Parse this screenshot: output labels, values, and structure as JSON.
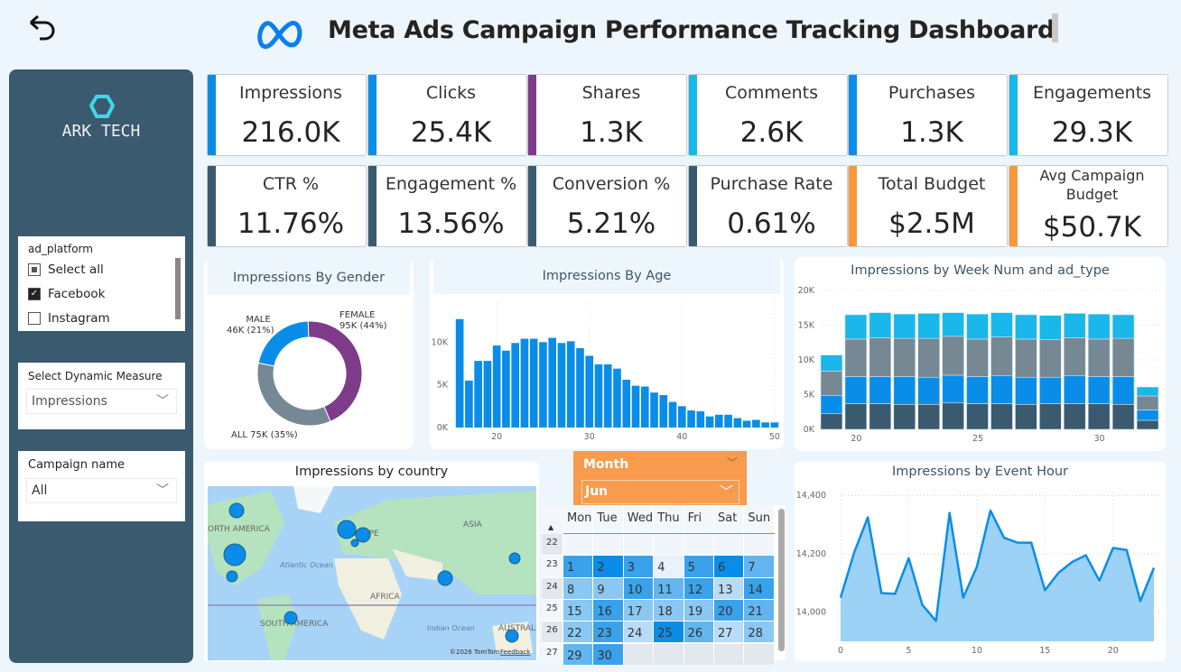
{
  "header": {
    "title": "Meta Ads Campaign Performance Tracking Dashboard",
    "back_icon": "undo-arrow-icon",
    "logo_icon": "meta-logo-icon"
  },
  "sidebar": {
    "brand": "ARK TECH",
    "ad_platform": {
      "title": "ad_platform",
      "options": [
        {
          "label": "Select all",
          "state": "partial"
        },
        {
          "label": "Facebook",
          "state": "checked"
        },
        {
          "label": "Instagram",
          "state": "unchecked"
        }
      ]
    },
    "dynamic_measure": {
      "title": "Select Dynamic Measure",
      "value": "Impressions"
    },
    "campaign": {
      "title": "Campaign name",
      "value": "All"
    }
  },
  "colors": {
    "blue": "#0a8de8",
    "cyan": "#1ab7ea",
    "purple": "#7e3b8a",
    "dark": "#3a5a70",
    "orange": "#f59a3c",
    "gray": "#768894"
  },
  "kpis": [
    {
      "label": "Impressions",
      "value": "216.0K",
      "color": "#0a8de8"
    },
    {
      "label": "Clicks",
      "value": "25.4K",
      "color": "#0a8de8"
    },
    {
      "label": "Shares",
      "value": "1.3K",
      "color": "#7e3b8a"
    },
    {
      "label": "Comments",
      "value": "2.6K",
      "color": "#1ab7ea"
    },
    {
      "label": "Purchases",
      "value": "1.3K",
      "color": "#0a8de8"
    },
    {
      "label": "Engagements",
      "value": "29.3K",
      "color": "#1ab7ea"
    },
    {
      "label": "CTR %",
      "value": "11.76%",
      "color": "#3a5a70"
    },
    {
      "label": "Engagement %",
      "value": "13.56%",
      "color": "#3a5a70"
    },
    {
      "label": "Conversion %",
      "value": "5.21%",
      "color": "#3a5a70"
    },
    {
      "label": "Purchase Rate",
      "value": "0.61%",
      "color": "#3a5a70"
    },
    {
      "label": "Total Budget",
      "value": "$2.5M",
      "color": "#f59a3c"
    },
    {
      "label": "Avg Campaign Budget",
      "value": "$50.7K",
      "color": "#f59a3c"
    }
  ],
  "chart_data": [
    {
      "id": "gender",
      "type": "pie",
      "title": "Impressions By Gender",
      "donut": true,
      "slices": [
        {
          "name": "FEMALE",
          "value": 95,
          "label": "95K (44%)",
          "color": "#7e3b8a"
        },
        {
          "name": "ALL",
          "value": 75,
          "label": "75K (35%)",
          "color": "#768894"
        },
        {
          "name": "MALE",
          "value": 46,
          "label": "46K (21%)",
          "color": "#0a8de8"
        }
      ]
    },
    {
      "id": "age",
      "type": "bar",
      "title": "Impressions By Age",
      "x_start": 16,
      "values": [
        12.7,
        5.5,
        7.8,
        7.8,
        9.6,
        9.0,
        9.9,
        10.4,
        10.4,
        10.0,
        10.5,
        9.9,
        10.1,
        9.3,
        8.4,
        7.4,
        7.4,
        6.9,
        5.6,
        4.9,
        4.8,
        4.1,
        3.8,
        3.0,
        2.5,
        2.0,
        1.9,
        1.3,
        1.5,
        1.5,
        1.1,
        0.8,
        0.9,
        0.6,
        0.6
      ],
      "unit": "K",
      "ylim": [
        0,
        14
      ],
      "yticks": [
        "0K",
        "5K",
        "10K"
      ],
      "xticks": [
        20,
        30,
        40,
        50
      ],
      "color": "#0a8de8"
    },
    {
      "id": "week",
      "type": "bar",
      "stacked": true,
      "title": "Impressions by Week Num and ad_type",
      "categories": [
        19,
        20,
        21,
        22,
        23,
        24,
        25,
        26,
        27,
        28,
        29,
        30,
        31,
        32
      ],
      "series": [
        {
          "color": "#3a5a70",
          "values": [
            2.3,
            3.7,
            3.7,
            3.6,
            3.6,
            3.8,
            3.7,
            3.7,
            3.6,
            3.7,
            3.7,
            3.7,
            3.6,
            1.3
          ]
        },
        {
          "color": "#0a8de8",
          "values": [
            2.6,
            3.9,
            3.9,
            4.0,
            3.9,
            4.0,
            3.9,
            4.0,
            3.9,
            3.8,
            4.0,
            3.9,
            4.0,
            1.5
          ]
        },
        {
          "color": "#768894",
          "values": [
            3.5,
            5.4,
            5.6,
            5.5,
            5.6,
            5.6,
            5.4,
            5.6,
            5.5,
            5.4,
            5.5,
            5.4,
            5.5,
            2.0
          ]
        },
        {
          "color": "#1ab7ea",
          "values": [
            2.3,
            3.5,
            3.6,
            3.5,
            3.6,
            3.4,
            3.6,
            3.5,
            3.5,
            3.5,
            3.5,
            3.6,
            3.4,
            1.3
          ]
        }
      ],
      "unit": "K",
      "ylim": [
        0,
        20
      ],
      "yticks": [
        "0K",
        "5K",
        "10K",
        "15K",
        "20K"
      ],
      "xticks": [
        20,
        25,
        30
      ]
    },
    {
      "id": "hour",
      "type": "area",
      "title": "Impressions by Event Hour",
      "x": [
        0,
        1,
        2,
        3,
        4,
        5,
        6,
        7,
        8,
        9,
        10,
        11,
        12,
        13,
        14,
        15,
        16,
        17,
        18,
        19,
        20,
        21,
        22,
        23
      ],
      "values": [
        14050,
        14205,
        14325,
        14065,
        14063,
        14185,
        14025,
        13970,
        14340,
        14050,
        14155,
        14348,
        14255,
        14238,
        14238,
        14075,
        14135,
        14172,
        14195,
        14108,
        14220,
        14213,
        14038,
        14152
      ],
      "ylim": [
        13900,
        14410
      ],
      "yticks": [
        "14,000",
        "14,200",
        "14,400"
      ],
      "xticks": [
        0,
        5,
        10,
        15,
        20
      ],
      "color": "#0a8de8"
    }
  ],
  "map": {
    "title": "Impressions by country",
    "labels": [
      "ORTH AMERICA",
      "EUROPE",
      "ASIA",
      "AFRICA",
      "SOUTH AMERICA",
      "AUSTRALIA",
      "Atlantic Ocean",
      "Indian Ocean"
    ],
    "credit": "©2026 TomTom",
    "feedback": "Feedback"
  },
  "month_slicer": {
    "title": "Month",
    "value": "Jun"
  },
  "calendar": {
    "weekdays": [
      "Mon",
      "Tue",
      "Wed",
      "Thu",
      "Fri",
      "Sat",
      "Sun"
    ],
    "weeks": [
      22,
      23,
      24,
      25,
      26,
      27
    ],
    "days": [
      {
        "d": 1,
        "level": 4
      },
      {
        "d": 2,
        "level": 5
      },
      {
        "d": 3,
        "level": 4
      },
      {
        "d": 4,
        "level": 0
      },
      {
        "d": 5,
        "level": 4
      },
      {
        "d": 6,
        "level": 5
      },
      {
        "d": 7,
        "level": 3
      },
      {
        "d": 8,
        "level": 2
      },
      {
        "d": 9,
        "level": 2
      },
      {
        "d": 10,
        "level": 4
      },
      {
        "d": 11,
        "level": 3
      },
      {
        "d": 12,
        "level": 4
      },
      {
        "d": 13,
        "level": 1
      },
      {
        "d": 14,
        "level": 4
      },
      {
        "d": 15,
        "level": 2
      },
      {
        "d": 16,
        "level": 4
      },
      {
        "d": 17,
        "level": 2
      },
      {
        "d": 18,
        "level": 2
      },
      {
        "d": 19,
        "level": 2
      },
      {
        "d": 20,
        "level": 4
      },
      {
        "d": 21,
        "level": 3
      },
      {
        "d": 22,
        "level": 2
      },
      {
        "d": 23,
        "level": 4
      },
      {
        "d": 24,
        "level": 1
      },
      {
        "d": 25,
        "level": 5
      },
      {
        "d": 26,
        "level": 3
      },
      {
        "d": 27,
        "level": 1
      },
      {
        "d": 28,
        "level": 2
      },
      {
        "d": 29,
        "level": 3
      },
      {
        "d": 30,
        "level": 4
      }
    ]
  }
}
